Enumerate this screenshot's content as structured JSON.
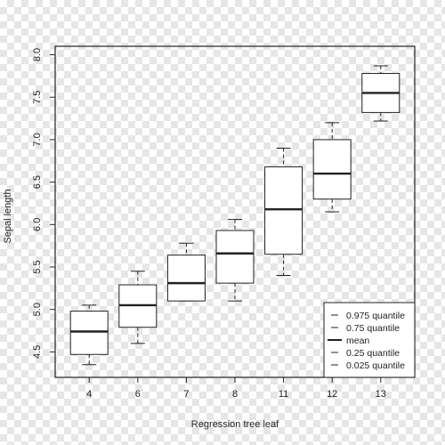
{
  "colors": {
    "ink": "#222222",
    "box_fill": "#ffffff"
  },
  "chart_data": {
    "type": "boxplot",
    "title": "",
    "xlabel": "Regression tree leaf",
    "ylabel": "Sepal length",
    "categories": [
      "4",
      "6",
      "7",
      "8",
      "11",
      "12",
      "13"
    ],
    "ylim": [
      4.2,
      8.1
    ],
    "yticks": [
      "4.5",
      "5.0",
      "5.5",
      "6.0",
      "6.5",
      "7.0",
      "7.5",
      "8.0"
    ],
    "series": [
      {
        "name": "0.025 quantile",
        "values": [
          4.35,
          4.6,
          5.1,
          5.1,
          5.4,
          6.15,
          7.22
        ]
      },
      {
        "name": "0.25 quantile",
        "values": [
          4.47,
          4.79,
          5.1,
          5.31,
          5.65,
          6.3,
          7.32
        ]
      },
      {
        "name": "mean",
        "values": [
          4.74,
          5.05,
          5.31,
          5.66,
          6.18,
          6.6,
          7.55
        ]
      },
      {
        "name": "0.75 quantile",
        "values": [
          4.98,
          5.29,
          5.64,
          5.93,
          6.68,
          7.0,
          7.78
        ]
      },
      {
        "name": "0.975 quantile",
        "values": [
          5.05,
          5.45,
          5.78,
          6.06,
          6.9,
          7.2,
          7.87
        ]
      }
    ],
    "legend": {
      "position": "bottom-right",
      "entries": [
        "0.975 quantile",
        "0.75 quantile",
        "mean",
        "0.25 quantile",
        "0.025 quantile"
      ]
    },
    "grid": false
  }
}
